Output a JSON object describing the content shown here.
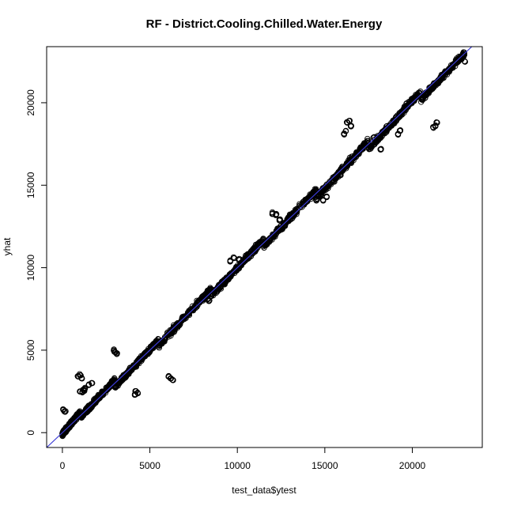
{
  "chart_data": {
    "type": "scatter",
    "title": "RF - District.Cooling.Chilled.Water.Energy",
    "xlabel": "test_data$ytest",
    "ylabel": "yhat",
    "xlim": [
      -900,
      24000
    ],
    "ylim": [
      -900,
      23400
    ],
    "x_ticks": [
      0,
      5000,
      10000,
      15000,
      20000
    ],
    "x_tick_labels": [
      "0",
      "5000",
      "10000",
      "15000",
      "20000"
    ],
    "y_ticks": [
      0,
      5000,
      10000,
      15000,
      20000
    ],
    "y_tick_labels": [
      "0",
      "5000",
      "10000",
      "15000",
      "20000"
    ],
    "grid": false,
    "marker": "open-circle",
    "marker_color": "#000000",
    "reference_line": {
      "slope": 1,
      "intercept": 0,
      "color": "#3b3bd6"
    },
    "clusters": [
      {
        "x": [
          0,
          200
        ],
        "y": [
          -100,
          200
        ]
      },
      {
        "x": [
          200,
          1000
        ],
        "y": [
          150,
          1200
        ]
      },
      {
        "x": [
          1000,
          3000
        ],
        "y": [
          900,
          3200
        ]
      },
      {
        "x": [
          3000,
          5500
        ],
        "y": [
          2800,
          5600
        ]
      },
      {
        "x": [
          5500,
          8500
        ],
        "y": [
          5300,
          8700
        ]
      },
      {
        "x": [
          8500,
          11500
        ],
        "y": [
          8300,
          11700
        ]
      },
      {
        "x": [
          11500,
          14500
        ],
        "y": [
          11300,
          14700
        ]
      },
      {
        "x": [
          14500,
          17500
        ],
        "y": [
          14200,
          17700
        ]
      },
      {
        "x": [
          17500,
          20500
        ],
        "y": [
          17200,
          20700
        ]
      },
      {
        "x": [
          20500,
          23000
        ],
        "y": [
          20200,
          23000
        ]
      }
    ],
    "outliers": [
      [
        50,
        1400
      ],
      [
        150,
        1300
      ],
      [
        900,
        3400
      ],
      [
        1000,
        3500
      ],
      [
        1100,
        3300
      ],
      [
        1200,
        2600
      ],
      [
        1000,
        2500
      ],
      [
        1300,
        2700
      ],
      [
        1150,
        2450
      ],
      [
        1250,
        2550
      ],
      [
        1500,
        2900
      ],
      [
        1700,
        3000
      ],
      [
        3000,
        4900
      ],
      [
        3100,
        4800
      ],
      [
        2950,
        5000
      ],
      [
        4200,
        2500
      ],
      [
        4300,
        2400
      ],
      [
        4150,
        2300
      ],
      [
        6200,
        3300
      ],
      [
        6300,
        3200
      ],
      [
        6100,
        3400
      ],
      [
        8300,
        8100
      ],
      [
        8200,
        8200
      ],
      [
        8400,
        8000
      ],
      [
        8500,
        8300
      ],
      [
        9600,
        10400
      ],
      [
        9800,
        10600
      ],
      [
        10100,
        10500
      ],
      [
        12000,
        13300
      ],
      [
        12200,
        13200
      ],
      [
        12400,
        12900
      ],
      [
        14900,
        14100
      ],
      [
        15100,
        14300
      ],
      [
        15900,
        15600
      ],
      [
        16200,
        18300
      ],
      [
        16300,
        18800
      ],
      [
        16400,
        18900
      ],
      [
        16100,
        18100
      ],
      [
        16500,
        18600
      ],
      [
        17800,
        17900
      ],
      [
        18200,
        17200
      ],
      [
        19200,
        18100
      ],
      [
        19300,
        18300
      ],
      [
        21300,
        18600
      ],
      [
        21400,
        18800
      ],
      [
        21200,
        18500
      ],
      [
        23000,
        22500
      ],
      [
        22800,
        22700
      ]
    ]
  }
}
